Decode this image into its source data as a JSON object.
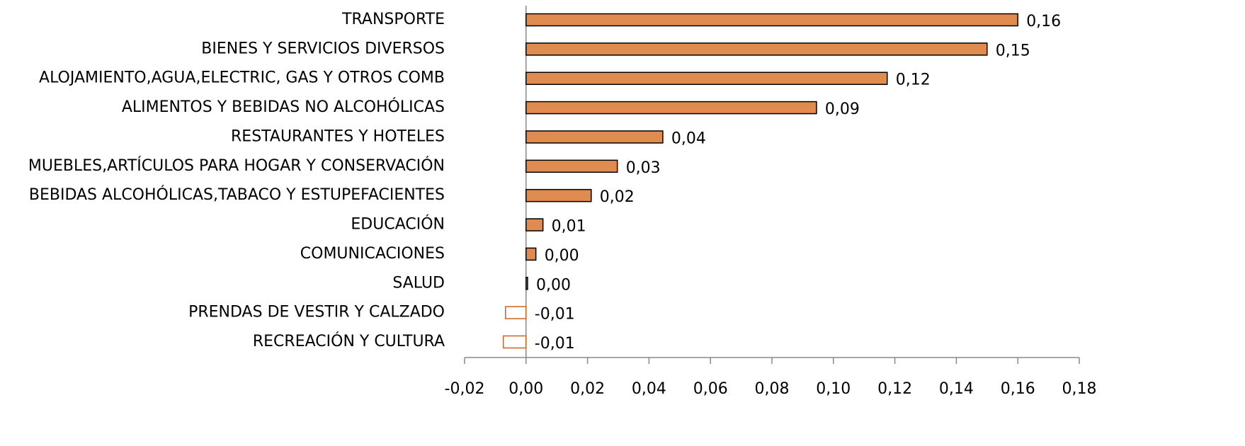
{
  "chart_data": {
    "type": "hbar",
    "categories": [
      "TRANSPORTE",
      "BIENES Y SERVICIOS DIVERSOS",
      "ALOJAMIENTO,AGUA,ELECTRIC, GAS Y OTROS COMB",
      "ALIMENTOS Y BEBIDAS NO ALCOHÓLICAS",
      "RESTAURANTES Y HOTELES",
      "MUEBLES,ARTÍCULOS PARA HOGAR Y CONSERVACIÓN",
      "BEBIDAS ALCOHÓLICAS,TABACO Y ESTUPEFACIENTES",
      "EDUCACIÓN",
      "COMUNICACIONES",
      "SALUD",
      "PRENDAS DE VESTIR Y CALZADO",
      "RECREACIÓN Y CULTURA"
    ],
    "values": [
      0.16,
      0.15,
      0.1175,
      0.0945,
      0.0445,
      0.0297,
      0.0212,
      0.0055,
      0.0032,
      0.0005,
      -0.0067,
      -0.0074
    ],
    "value_labels": [
      "0,16",
      "0,15",
      "0,12",
      "0,09",
      "0,04",
      "0,03",
      "0,02",
      "0,01",
      "0,00",
      "0,00",
      "-0,01",
      "-0,01"
    ],
    "color": "#e08b4f",
    "negative_color": "#c8651e",
    "xlim": [
      -0.02,
      0.18
    ],
    "xticks": [
      {
        "value": -0.02,
        "label": "-0,02"
      },
      {
        "value": 0,
        "label": "0,00"
      },
      {
        "value": 0.02,
        "label": "0,02"
      },
      {
        "value": 0.04,
        "label": "0,04"
      },
      {
        "value": 0.06,
        "label": "0,06"
      },
      {
        "value": 0.08,
        "label": "0,08"
      },
      {
        "value": 0.1,
        "label": "0,10"
      },
      {
        "value": 0.12,
        "label": "0,12"
      },
      {
        "value": 0.14,
        "label": "0,14"
      },
      {
        "value": 0.16,
        "label": "0,16"
      },
      {
        "value": 0.18,
        "label": "0,18"
      }
    ],
    "grid": false
  }
}
